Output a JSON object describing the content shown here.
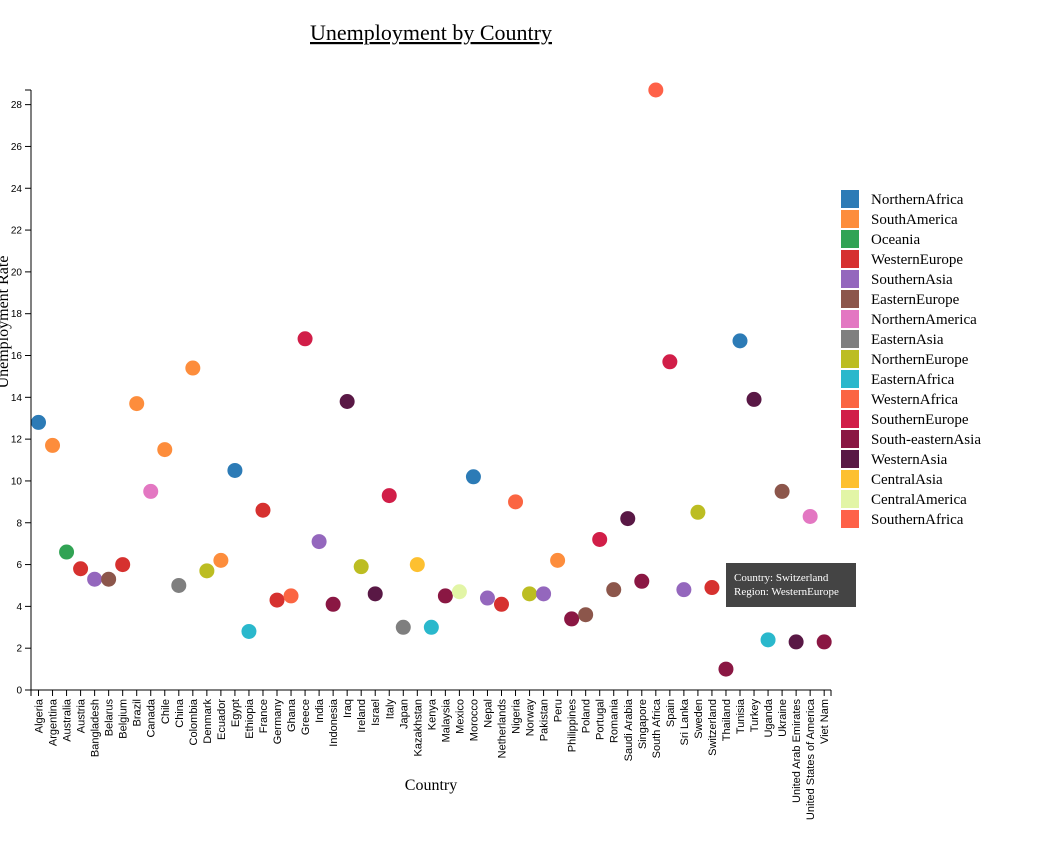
{
  "chart_data": {
    "type": "scatter",
    "title": "Unemployment by Country",
    "xlabel": "Country",
    "ylabel": "Unemployment Rate",
    "ylim": [
      0,
      28.7
    ],
    "yticks": [
      0,
      2,
      4,
      6,
      8,
      10,
      12,
      14,
      16,
      18,
      20,
      22,
      24,
      26,
      28
    ],
    "legend_placement": "right",
    "grid": false,
    "categories": [
      "Algeria",
      "Argentina",
      "Australia",
      "Austria",
      "Bangladesh",
      "Belarus",
      "Belgium",
      "Brazil",
      "Canada",
      "Chile",
      "China",
      "Colombia",
      "Denmark",
      "Ecuador",
      "Egypt",
      "Ethiopia",
      "France",
      "Germany",
      "Ghana",
      "Greece",
      "India",
      "Indonesia",
      "Iraq",
      "Ireland",
      "Israel",
      "Italy",
      "Japan",
      "Kazakhstan",
      "Kenya",
      "Malaysia",
      "Mexico",
      "Morocco",
      "Nepal",
      "Netherlands",
      "Nigeria",
      "Norway",
      "Pakistan",
      "Peru",
      "Philippines",
      "Poland",
      "Portugal",
      "Romania",
      "Saudi Arabia",
      "Singapore",
      "South Africa",
      "Spain",
      "Sri Lanka",
      "Sweden",
      "Switzerland",
      "Thailand",
      "Tunisia",
      "Turkey",
      "Uganda",
      "Ukraine",
      "United Arab Emirates",
      "United States of America",
      "Viet Nam"
    ],
    "legend": [
      {
        "name": "NorthernAfrica",
        "color": "#2c7bb6"
      },
      {
        "name": "SouthAmerica",
        "color": "#fd8d3c"
      },
      {
        "name": "Oceania",
        "color": "#31a354"
      },
      {
        "name": "WesternEurope",
        "color": "#d6312f"
      },
      {
        "name": "SouthernAsia",
        "color": "#9467bd"
      },
      {
        "name": "EasternEurope",
        "color": "#8c564b"
      },
      {
        "name": "NorthernAmerica",
        "color": "#e377c2"
      },
      {
        "name": "EasternAsia",
        "color": "#7f7f7f"
      },
      {
        "name": "NorthernEurope",
        "color": "#bcbd22"
      },
      {
        "name": "EasternAfrica",
        "color": "#2ab8cc"
      },
      {
        "name": "WesternAfrica",
        "color": "#fb6542"
      },
      {
        "name": "SouthernEurope",
        "color": "#d11e48"
      },
      {
        "name": "South-easternAsia",
        "color": "#8a1743"
      },
      {
        "name": "WesternAsia",
        "color": "#591845"
      },
      {
        "name": "CentralAsia",
        "color": "#fdc030"
      },
      {
        "name": "CentralAmerica",
        "color": "#e2f5a6"
      },
      {
        "name": "SouthernAfrica",
        "color": "#fe6148"
      }
    ],
    "points": [
      {
        "x": "Algeria",
        "y": 12.8,
        "region": "NorthernAfrica"
      },
      {
        "x": "Argentina",
        "y": 11.7,
        "region": "SouthAmerica"
      },
      {
        "x": "Australia",
        "y": 6.6,
        "region": "Oceania"
      },
      {
        "x": "Austria",
        "y": 5.8,
        "region": "WesternEurope"
      },
      {
        "x": "Bangladesh",
        "y": 5.3,
        "region": "SouthernAsia"
      },
      {
        "x": "Belarus",
        "y": 5.3,
        "region": "EasternEurope"
      },
      {
        "x": "Belgium",
        "y": 6.0,
        "region": "WesternEurope"
      },
      {
        "x": "Brazil",
        "y": 13.7,
        "region": "SouthAmerica"
      },
      {
        "x": "Canada",
        "y": 9.5,
        "region": "NorthernAmerica"
      },
      {
        "x": "Chile",
        "y": 11.5,
        "region": "SouthAmerica"
      },
      {
        "x": "China",
        "y": 5.0,
        "region": "EasternAsia"
      },
      {
        "x": "Colombia",
        "y": 15.4,
        "region": "SouthAmerica"
      },
      {
        "x": "Denmark",
        "y": 5.7,
        "region": "NorthernEurope"
      },
      {
        "x": "Ecuador",
        "y": 6.2,
        "region": "SouthAmerica"
      },
      {
        "x": "Egypt",
        "y": 10.5,
        "region": "NorthernAfrica"
      },
      {
        "x": "Ethiopia",
        "y": 2.8,
        "region": "EasternAfrica"
      },
      {
        "x": "France",
        "y": 8.6,
        "region": "WesternEurope"
      },
      {
        "x": "Germany",
        "y": 4.3,
        "region": "WesternEurope"
      },
      {
        "x": "Ghana",
        "y": 4.5,
        "region": "WesternAfrica"
      },
      {
        "x": "Greece",
        "y": 16.8,
        "region": "SouthernEurope"
      },
      {
        "x": "India",
        "y": 7.1,
        "region": "SouthernAsia"
      },
      {
        "x": "Indonesia",
        "y": 4.1,
        "region": "South-easternAsia"
      },
      {
        "x": "Iraq",
        "y": 13.8,
        "region": "WesternAsia"
      },
      {
        "x": "Ireland",
        "y": 5.9,
        "region": "NorthernEurope"
      },
      {
        "x": "Israel",
        "y": 4.6,
        "region": "WesternAsia"
      },
      {
        "x": "Italy",
        "y": 9.3,
        "region": "SouthernEurope"
      },
      {
        "x": "Japan",
        "y": 3.0,
        "region": "EasternAsia"
      },
      {
        "x": "Kazakhstan",
        "y": 6.0,
        "region": "CentralAsia"
      },
      {
        "x": "Kenya",
        "y": 3.0,
        "region": "EasternAfrica"
      },
      {
        "x": "Malaysia",
        "y": 4.5,
        "region": "South-easternAsia"
      },
      {
        "x": "Mexico",
        "y": 4.7,
        "region": "CentralAmerica"
      },
      {
        "x": "Morocco",
        "y": 10.2,
        "region": "NorthernAfrica"
      },
      {
        "x": "Nepal",
        "y": 4.4,
        "region": "SouthernAsia"
      },
      {
        "x": "Netherlands",
        "y": 4.1,
        "region": "WesternEurope"
      },
      {
        "x": "Nigeria",
        "y": 9.0,
        "region": "WesternAfrica"
      },
      {
        "x": "Norway",
        "y": 4.6,
        "region": "NorthernEurope"
      },
      {
        "x": "Pakistan",
        "y": 4.6,
        "region": "SouthernAsia"
      },
      {
        "x": "Peru",
        "y": 6.2,
        "region": "SouthAmerica"
      },
      {
        "x": "Philippines",
        "y": 3.4,
        "region": "South-easternAsia"
      },
      {
        "x": "Poland",
        "y": 3.6,
        "region": "EasternEurope"
      },
      {
        "x": "Portugal",
        "y": 7.2,
        "region": "SouthernEurope"
      },
      {
        "x": "Romania",
        "y": 4.8,
        "region": "EasternEurope"
      },
      {
        "x": "Saudi Arabia",
        "y": 8.2,
        "region": "WesternAsia"
      },
      {
        "x": "Singapore",
        "y": 5.2,
        "region": "South-easternAsia"
      },
      {
        "x": "South Africa",
        "y": 28.7,
        "region": "SouthernAfrica"
      },
      {
        "x": "Spain",
        "y": 15.7,
        "region": "SouthernEurope"
      },
      {
        "x": "Sri Lanka",
        "y": 4.8,
        "region": "SouthernAsia"
      },
      {
        "x": "Sweden",
        "y": 8.5,
        "region": "NorthernEurope"
      },
      {
        "x": "Switzerland",
        "y": 4.9,
        "region": "WesternEurope"
      },
      {
        "x": "Thailand",
        "y": 1.0,
        "region": "South-easternAsia"
      },
      {
        "x": "Tunisia",
        "y": 16.7,
        "region": "NorthernAfrica"
      },
      {
        "x": "Turkey",
        "y": 13.9,
        "region": "WesternAsia"
      },
      {
        "x": "Uganda",
        "y": 2.4,
        "region": "EasternAfrica"
      },
      {
        "x": "Ukraine",
        "y": 9.5,
        "region": "EasternEurope"
      },
      {
        "x": "United Arab Emirates",
        "y": 2.3,
        "region": "WesternAsia"
      },
      {
        "x": "United States of America",
        "y": 8.3,
        "region": "NorthernAmerica"
      },
      {
        "x": "Viet Nam",
        "y": 2.3,
        "region": "South-easternAsia"
      }
    ]
  },
  "tooltip": {
    "line1": "Country: Switzerland",
    "line2": "Region: WesternEurope"
  }
}
